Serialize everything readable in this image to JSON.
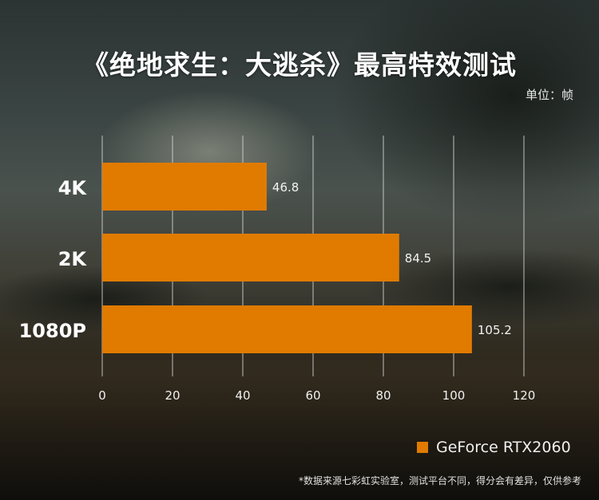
{
  "title": "《绝地求生：大逃杀》最高特效测试",
  "unit_label": "单位：帧",
  "legend_label": "GeForce RTX2060",
  "footnote": "*数据来源七彩虹实验室，测试平台不同，得分会有差异，仅供参考",
  "colors": {
    "bar": "#e07b00",
    "grid": "#d8d8d8"
  },
  "chart_data": {
    "type": "bar",
    "orientation": "horizontal",
    "categories": [
      "4K",
      "2K",
      "1080P"
    ],
    "series": [
      {
        "name": "GeForce RTX2060",
        "values": [
          46.8,
          84.5,
          105.2
        ]
      }
    ],
    "data_labels": [
      "46.8",
      "84.5",
      "105.2"
    ],
    "xlim": [
      0,
      120
    ],
    "xticks": [
      "0",
      "20",
      "40",
      "60",
      "80",
      "100",
      "120"
    ],
    "grid": "vertical",
    "legend": "bottom-right",
    "title": "《绝地求生：大逃杀》最高特效测试",
    "xlabel": "",
    "ylabel": ""
  }
}
